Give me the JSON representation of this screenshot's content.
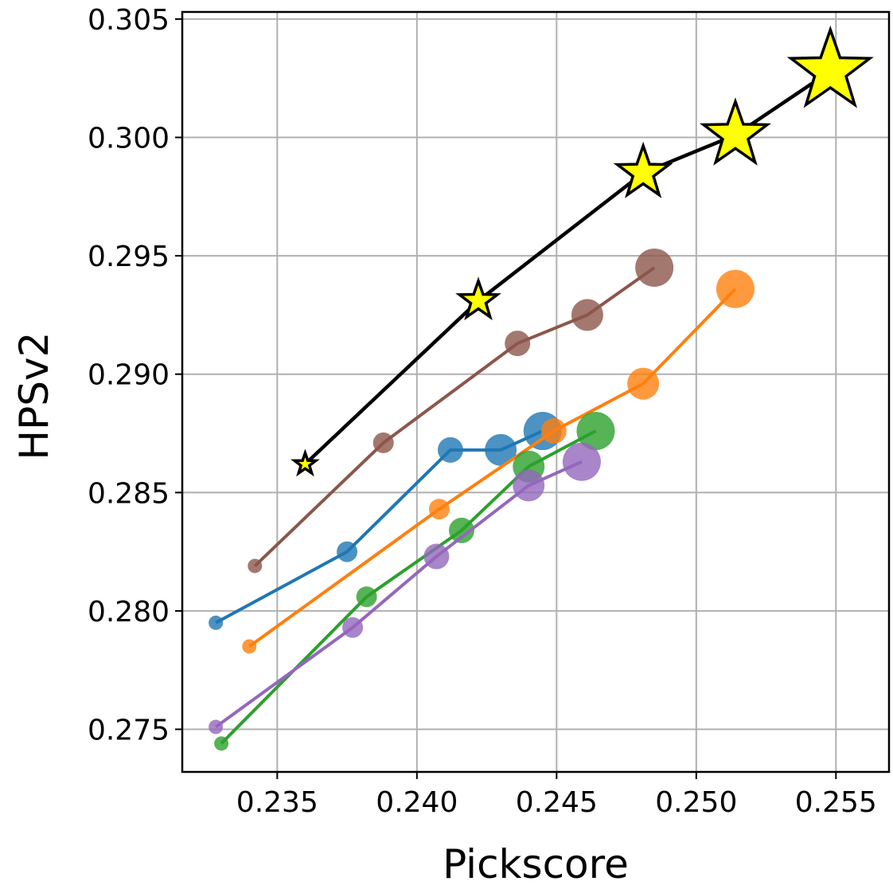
{
  "chart_data": {
    "type": "scatter",
    "xlabel": "Pickscore",
    "ylabel": "HPSv2",
    "xlim": [
      0.2316,
      0.2569
    ],
    "ylim": [
      0.2732,
      0.3053
    ],
    "xticks": [
      0.235,
      0.24,
      0.245,
      0.25,
      0.255
    ],
    "xtick_labels": [
      "0.235",
      "0.240",
      "0.245",
      "0.250",
      "0.255"
    ],
    "yticks": [
      0.275,
      0.28,
      0.285,
      0.29,
      0.295,
      0.3,
      0.305
    ],
    "ytick_labels": [
      "0.275",
      "0.280",
      "0.285",
      "0.290",
      "0.295",
      "0.300",
      "0.305"
    ],
    "grid": true,
    "marker_size_meaning": "marker size increases along each series",
    "series": [
      {
        "color": "#8c564b",
        "marker": "circle",
        "x": [
          0.2342,
          0.2388,
          0.2436,
          0.2461,
          0.2485
        ],
        "y": [
          0.2819,
          0.2871,
          0.2913,
          0.2925,
          0.2945
        ]
      },
      {
        "color": "#1f77b4",
        "marker": "circle",
        "x": [
          0.2328,
          0.2375,
          0.2412,
          0.243,
          0.2445
        ],
        "y": [
          0.2795,
          0.2825,
          0.2868,
          0.2868,
          0.2876
        ]
      },
      {
        "color": "#ff7f0e",
        "marker": "circle",
        "x": [
          0.234,
          0.2408,
          0.2449,
          0.2481,
          0.2514
        ],
        "y": [
          0.2785,
          0.2843,
          0.2876,
          0.2896,
          0.2936
        ]
      },
      {
        "color": "#2ca02c",
        "marker": "circle",
        "x": [
          0.233,
          0.2382,
          0.2416,
          0.244,
          0.2464
        ],
        "y": [
          0.2744,
          0.2806,
          0.2834,
          0.2861,
          0.2876
        ]
      },
      {
        "color": "#9467bd",
        "marker": "circle",
        "x": [
          0.2328,
          0.2377,
          0.2407,
          0.244,
          0.2459
        ],
        "y": [
          0.2751,
          0.2793,
          0.2823,
          0.2853,
          0.2863
        ]
      },
      {
        "color": "#000000",
        "marker_fill": "#ffff00",
        "marker": "star",
        "x": [
          0.236,
          0.2422,
          0.2481,
          0.2514,
          0.2548
        ],
        "y": [
          0.2862,
          0.2931,
          0.2985,
          0.3001,
          0.3028
        ]
      }
    ]
  }
}
